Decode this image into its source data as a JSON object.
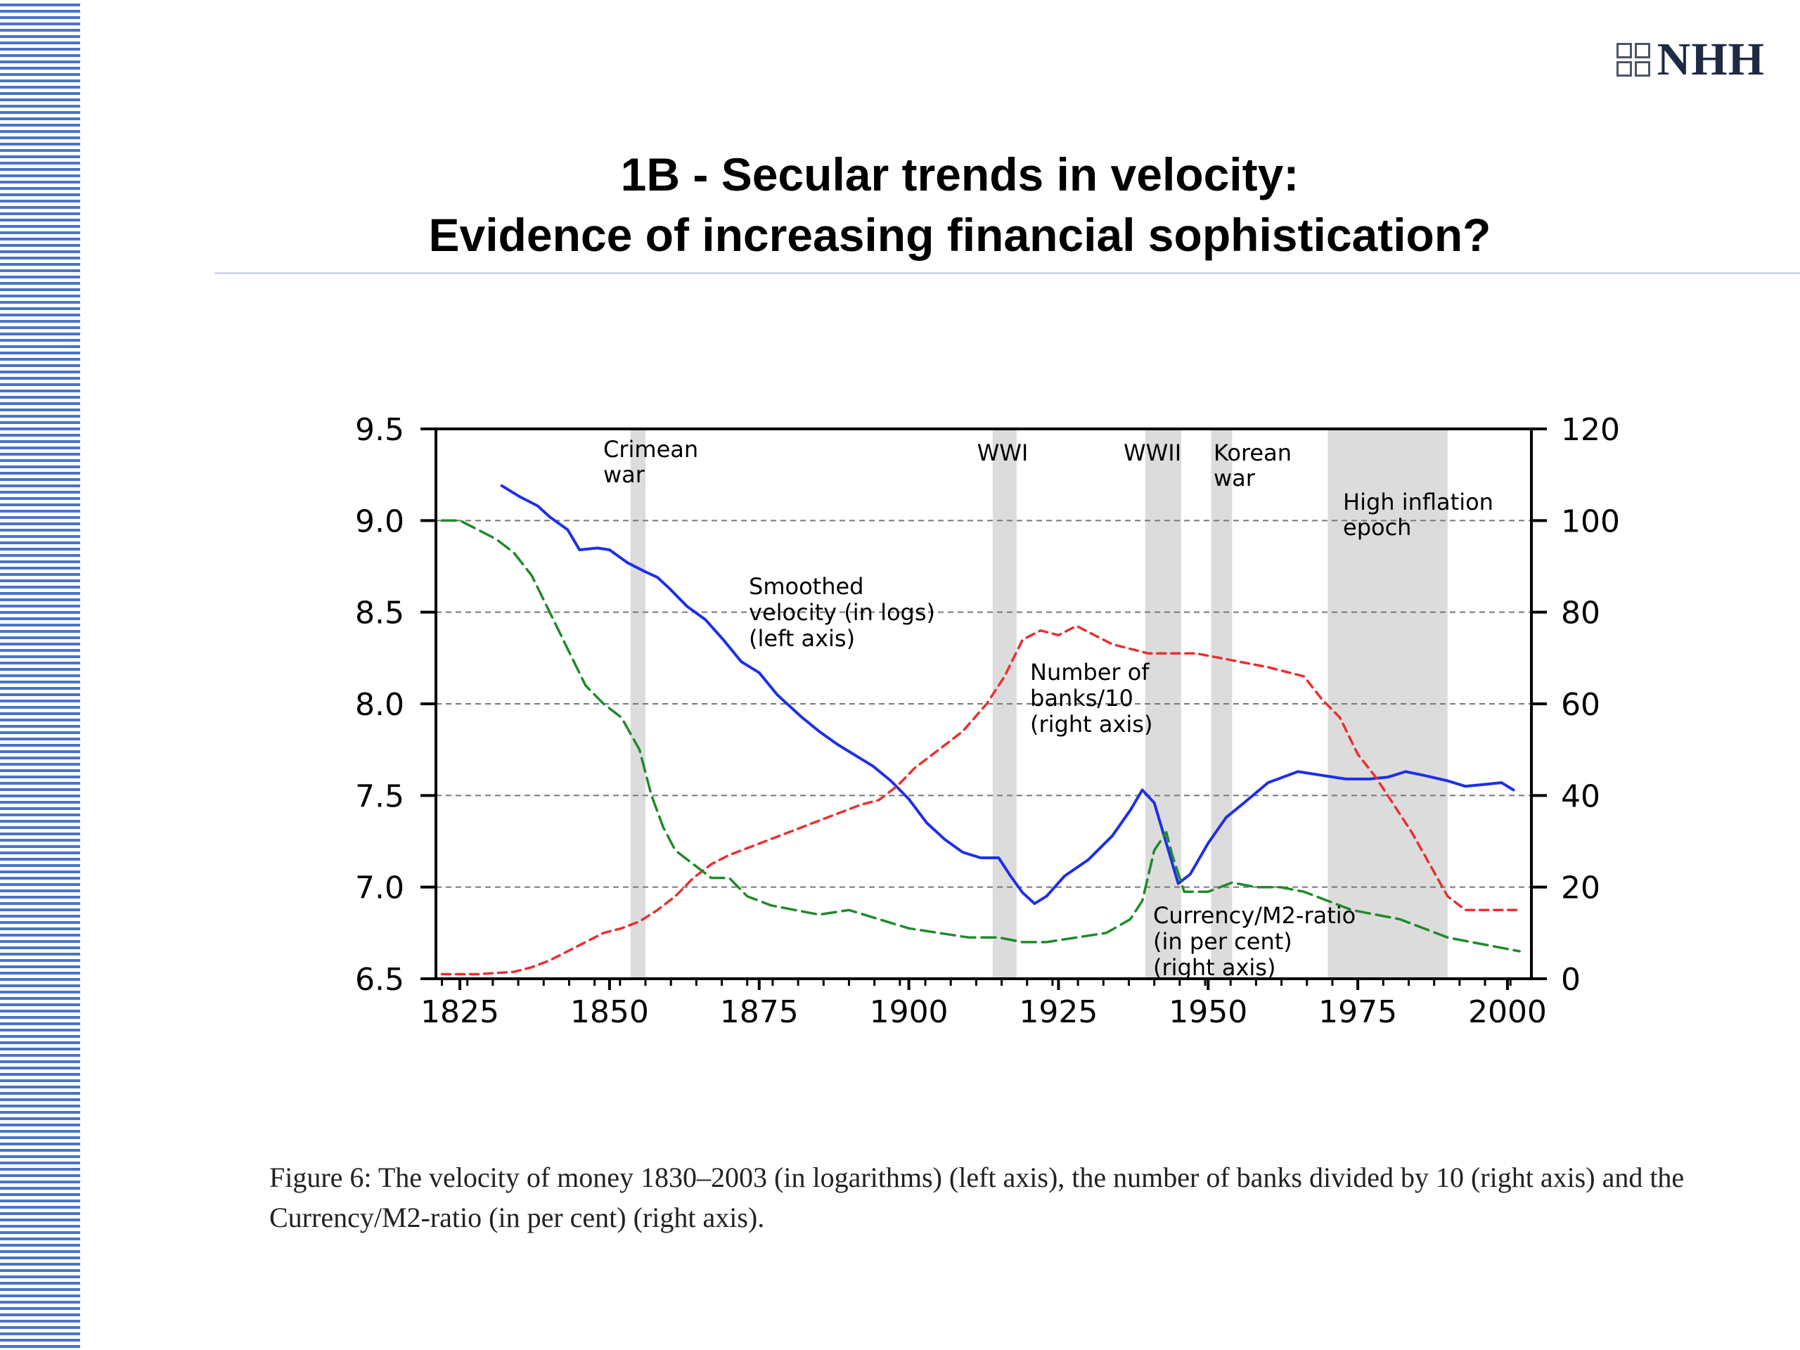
{
  "slide": {
    "logo_text": "NHH",
    "title_line1": "1B - Secular trends in velocity:",
    "title_line2": "Evidence of increasing financial sophistication?",
    "caption": "Figure 6: The velocity of money 1830–2003 (in logarithms) (left axis), the number of banks divided by 10 (right axis) and the Currency/M2-ratio (in per cent) (right axis)."
  },
  "colors": {
    "stripe": "#4a74c9",
    "velocity": "#1f2fe6",
    "banks": "#e83030",
    "currency": "#1f8a2a",
    "shading": "#dcdcdc",
    "gridline": "#777777"
  },
  "chart_data": {
    "type": "line",
    "x_range": [
      1821,
      2004
    ],
    "x_ticks": [
      1825,
      1850,
      1875,
      1900,
      1925,
      1950,
      1975,
      2000
    ],
    "left_axis": {
      "range": [
        6.5,
        9.5
      ],
      "ticks": [
        "6.5",
        "7.0",
        "7.5",
        "8.0",
        "8.5",
        "9.0",
        "9.5"
      ]
    },
    "right_axis": {
      "range": [
        0,
        120
      ],
      "ticks": [
        "0",
        "20",
        "40",
        "60",
        "80",
        "100",
        "120"
      ]
    },
    "grid": "horizontal dashed",
    "shaded_periods": [
      {
        "label": "Crimean war",
        "from": 1853.5,
        "to": 1856
      },
      {
        "label": "WWI",
        "from": 1914,
        "to": 1918
      },
      {
        "label": "WWII",
        "from": 1939.5,
        "to": 1945.5
      },
      {
        "label": "Korean war",
        "from": 1950.5,
        "to": 1954
      },
      {
        "label": "High inflation epoch",
        "from": 1970,
        "to": 1990
      }
    ],
    "shade_labels": [
      {
        "lines": [
          "Crimean",
          "war"
        ]
      },
      {
        "lines": [
          "WWI"
        ]
      },
      {
        "lines": [
          "WWII"
        ]
      },
      {
        "lines": [
          "Korean",
          "war"
        ]
      },
      {
        "lines": [
          "High inflation",
          "epoch"
        ]
      }
    ],
    "series": [
      {
        "axis": "left",
        "style": "solid",
        "label_lines": [
          "Smoothed",
          "velocity (in logs)",
          "(left axis)"
        ],
        "x": [
          1832,
          1835,
          1838,
          1840,
          1843,
          1845,
          1848,
          1850,
          1853,
          1856,
          1858,
          1860,
          1863,
          1866,
          1869,
          1872,
          1875,
          1878,
          1882,
          1885,
          1888,
          1891,
          1894,
          1897,
          1900,
          1903,
          1906,
          1909,
          1912,
          1915,
          1917,
          1919,
          1921,
          1923,
          1926,
          1930,
          1934,
          1937,
          1939,
          1941,
          1943,
          1945,
          1947,
          1950,
          1953,
          1956,
          1960,
          1965,
          1969,
          1973,
          1977,
          1980,
          1983,
          1986,
          1990,
          1993,
          1996,
          1999,
          2001
        ],
        "y": [
          9.19,
          9.13,
          9.08,
          9.02,
          8.95,
          8.84,
          8.85,
          8.84,
          8.77,
          8.72,
          8.69,
          8.63,
          8.53,
          8.46,
          8.35,
          8.23,
          8.17,
          8.05,
          7.93,
          7.85,
          7.78,
          7.72,
          7.66,
          7.58,
          7.48,
          7.35,
          7.26,
          7.19,
          7.16,
          7.16,
          7.06,
          6.97,
          6.91,
          6.95,
          7.06,
          7.15,
          7.28,
          7.42,
          7.53,
          7.46,
          7.24,
          7.02,
          7.07,
          7.24,
          7.38,
          7.46,
          7.57,
          7.63,
          7.61,
          7.59,
          7.59,
          7.6,
          7.63,
          7.61,
          7.58,
          7.55,
          7.56,
          7.57,
          7.53
        ]
      },
      {
        "axis": "right",
        "style": "dashed",
        "label_lines": [
          "Number of",
          "banks/10",
          "(right axis)"
        ],
        "x": [
          1822,
          1828,
          1834,
          1837,
          1840,
          1843,
          1846,
          1849,
          1852,
          1855,
          1858,
          1861,
          1864,
          1867,
          1870,
          1873,
          1876,
          1880,
          1884,
          1888,
          1892,
          1895,
          1898,
          1901,
          1905,
          1909,
          1913,
          1916,
          1919,
          1922,
          1925,
          1928,
          1931,
          1934,
          1937,
          1940,
          1944,
          1948,
          1952,
          1956,
          1960,
          1963,
          1966,
          1969,
          1972,
          1975,
          1978,
          1981,
          1984,
          1987,
          1990,
          1993,
          1996,
          1999,
          2002
        ],
        "y": [
          1,
          1,
          1.5,
          2.5,
          4,
          6,
          8,
          10,
          11,
          12.5,
          15,
          18,
          22,
          25,
          27,
          28.5,
          30,
          32,
          34,
          36,
          38,
          39,
          42,
          46,
          50,
          54,
          60,
          66,
          74,
          76,
          75,
          77,
          75,
          73,
          72,
          71,
          71,
          71,
          70,
          69,
          68,
          67,
          66,
          61,
          57,
          49,
          44,
          38,
          32,
          25,
          18,
          15,
          15,
          15,
          15
        ]
      },
      {
        "axis": "right",
        "style": "dashed",
        "label_lines": [
          "Currency/M2-ratio",
          "(in per cent)",
          "(right axis)"
        ],
        "x": [
          1822,
          1825,
          1828,
          1831,
          1834,
          1837,
          1840,
          1843,
          1846,
          1849,
          1852,
          1855,
          1857,
          1859,
          1861,
          1864,
          1867,
          1870,
          1873,
          1877,
          1881,
          1885,
          1890,
          1895,
          1900,
          1905,
          1910,
          1915,
          1919,
          1923,
          1928,
          1933,
          1937,
          1939,
          1941,
          1943,
          1944,
          1946,
          1950,
          1954,
          1958,
          1962,
          1966,
          1970,
          1974,
          1978,
          1982,
          1986,
          1990,
          1994,
          1998,
          2002
        ],
        "y": [
          100,
          100,
          98,
          96,
          93,
          88,
          80,
          72,
          64,
          60,
          57,
          50,
          40,
          33,
          28,
          25,
          22,
          22,
          18,
          16,
          15,
          14,
          15,
          13,
          11,
          10,
          9,
          9,
          8,
          8,
          9,
          10,
          13,
          17,
          28,
          32,
          27,
          19,
          19,
          21,
          20,
          20,
          19,
          17,
          15,
          14,
          13,
          11,
          9,
          8,
          7,
          6
        ]
      }
    ]
  }
}
